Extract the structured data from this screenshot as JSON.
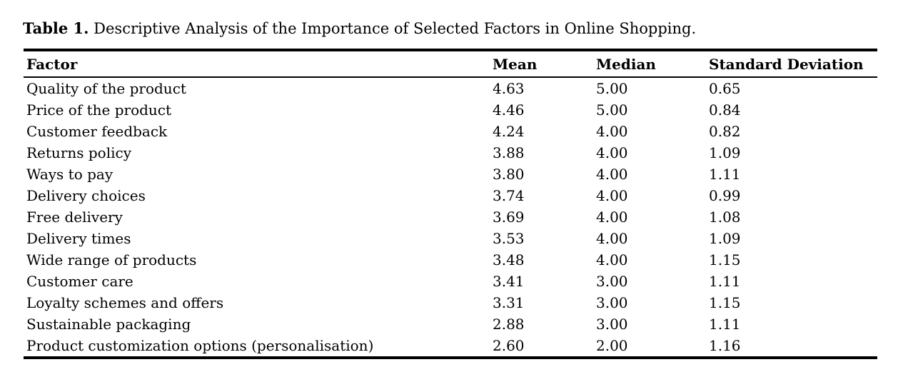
{
  "page": {
    "background_color": "#ffffff",
    "text_color": "#000000"
  },
  "caption": {
    "label": "Table 1.",
    "text": " Descriptive Analysis of the Importance of Selected Factors in Online Shopping."
  },
  "table": {
    "columns": [
      "Factor",
      "Mean",
      "Median",
      "Standard Deviation"
    ],
    "rows": [
      [
        "Quality of the product",
        "4.63",
        "5.00",
        "0.65"
      ],
      [
        "Price of the product",
        "4.46",
        "5.00",
        "0.84"
      ],
      [
        "Customer feedback",
        "4.24",
        "4.00",
        "0.82"
      ],
      [
        "Returns policy",
        "3.88",
        "4.00",
        "1.09"
      ],
      [
        "Ways to pay",
        "3.80",
        "4.00",
        "1.11"
      ],
      [
        "Delivery choices",
        "3.74",
        "4.00",
        "0.99"
      ],
      [
        "Free delivery",
        "3.69",
        "4.00",
        "1.08"
      ],
      [
        "Delivery times",
        "3.53",
        "4.00",
        "1.09"
      ],
      [
        "Wide range of products",
        "3.48",
        "4.00",
        "1.15"
      ],
      [
        "Customer care",
        "3.41",
        "3.00",
        "1.11"
      ],
      [
        "Loyalty schemes and offers",
        "3.31",
        "3.00",
        "1.15"
      ],
      [
        "Sustainable packaging",
        "2.88",
        "3.00",
        "1.11"
      ],
      [
        "Product customization options (personalisation)",
        "2.60",
        "2.00",
        "1.16"
      ]
    ]
  }
}
